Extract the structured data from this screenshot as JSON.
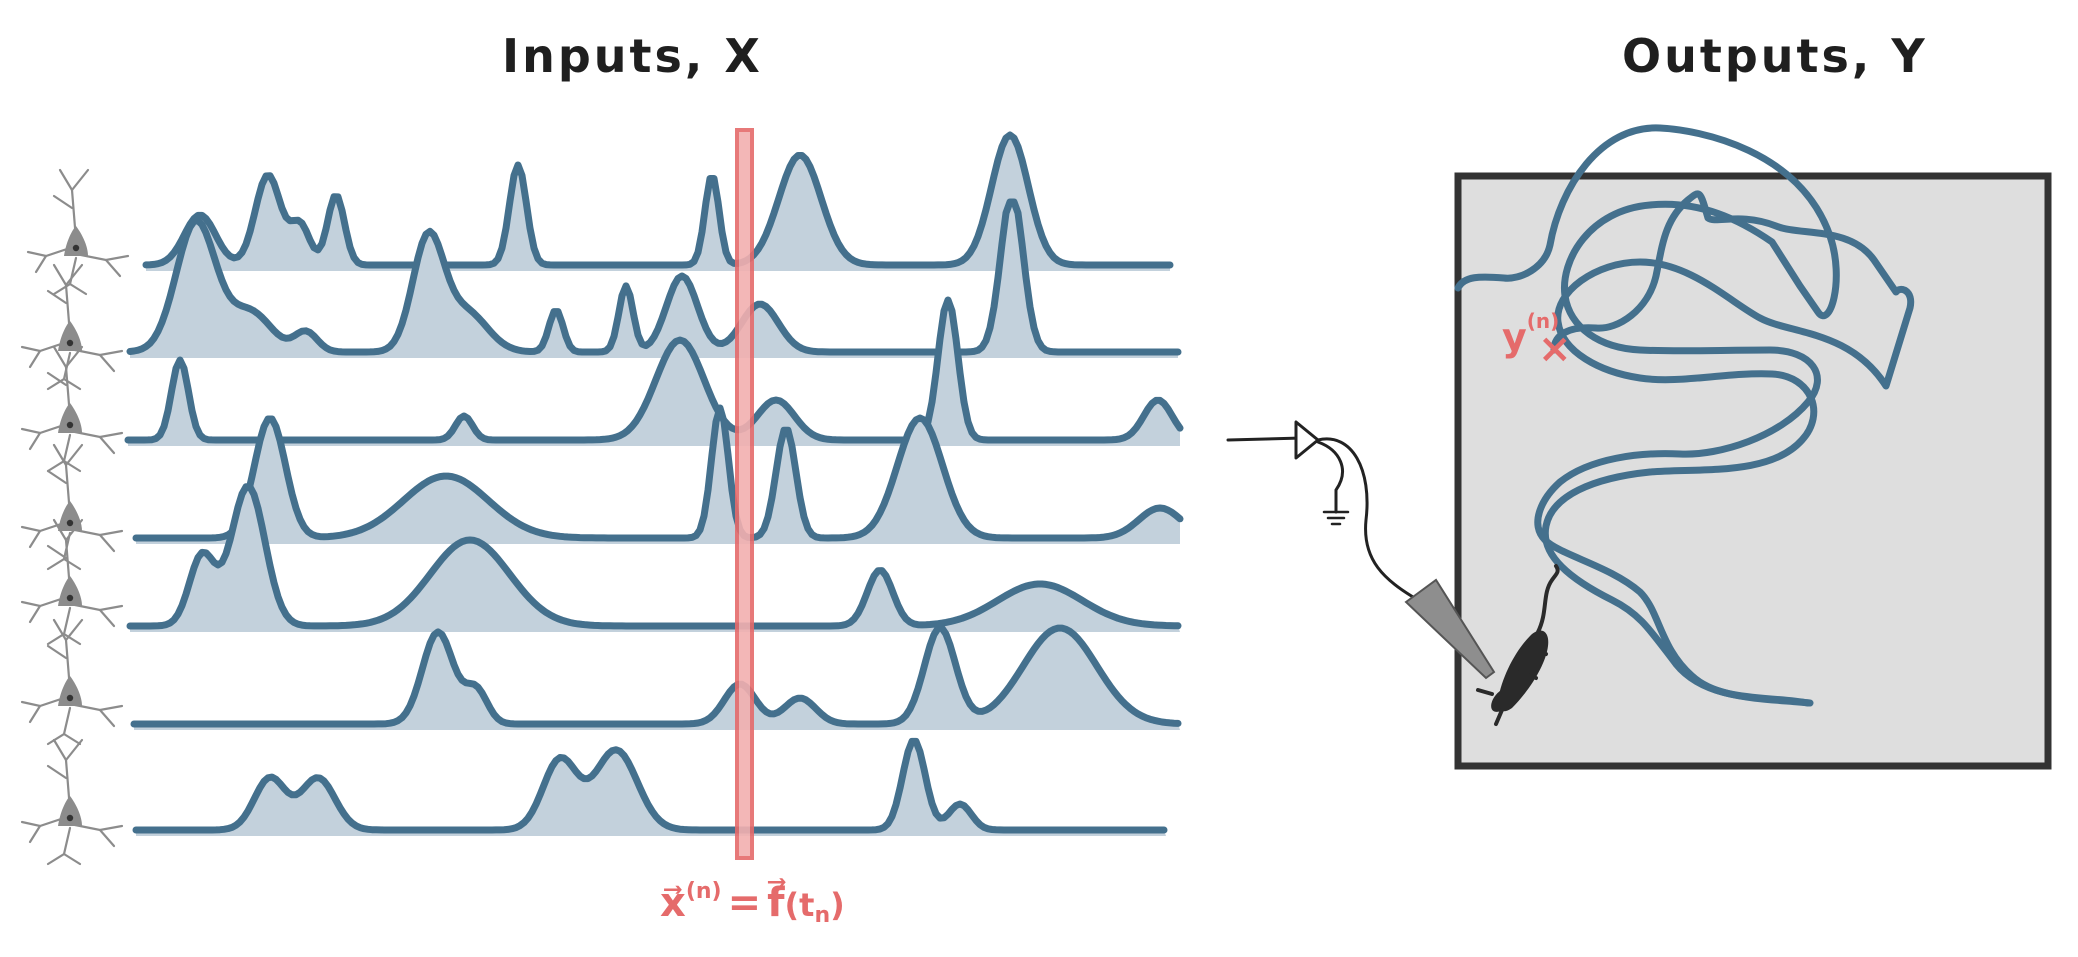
{
  "inputs_title": "Inputs, X",
  "outputs_title": "Outputs, Y",
  "input_vector_label": {
    "lhs": "x⃗",
    "sup": "(n)",
    "eq": "=",
    "rhs": "f⃗",
    "arg": "(t",
    "sub": "n",
    "close": ")"
  },
  "output_point_label": {
    "base": "y",
    "sup": "(n)",
    "marker": "×"
  },
  "colors": {
    "trace": "#44708d",
    "trace_fill": "#c3d1dc",
    "highlight": "#e56b6b",
    "arena_fill": "#dedede",
    "arena_border": "#333333",
    "neuron": "#8c8c8c"
  },
  "icons": [
    "neuron-icon",
    "electrode-icon",
    "amplifier-icon",
    "ground-icon",
    "rat-icon"
  ],
  "neuron_count": 7
}
